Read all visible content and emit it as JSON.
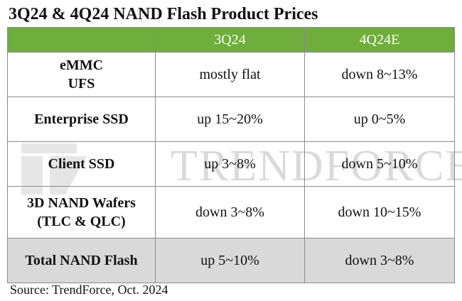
{
  "title": "3Q24 & 4Q24 NAND Flash Product Prices",
  "watermark": {
    "text": "TRENDFORCE",
    "logo_icon": "trendforce-logo-icon"
  },
  "table": {
    "columns": [
      "",
      "3Q24",
      "4Q24E"
    ],
    "rows": [
      {
        "label_line1": "eMMC",
        "label_line2": "UFS",
        "q3": "mostly flat",
        "q4": "down 8~13%"
      },
      {
        "label_line1": "Enterprise SSD",
        "label_line2": "",
        "q3": "up 15~20%",
        "q4": "up 0~5%"
      },
      {
        "label_line1": "Client SSD",
        "label_line2": "",
        "q3": "up 3~8%",
        "q4": "down 5~10%"
      },
      {
        "label_line1": "3D NAND Wafers",
        "label_line2": "(TLC & QLC)",
        "q3": "down 3~8%",
        "q4": "down 10~15%"
      },
      {
        "label_line1": "Total NAND Flash",
        "label_line2": "",
        "q3": "up 5~10%",
        "q4": "down 3~8%"
      }
    ]
  },
  "source": "Source: TrendForce, Oct. 2024",
  "colors": {
    "header_bg": "#6fae3a",
    "total_row_bg": "#d9d9d9",
    "watermark": "#bdbdbd"
  }
}
